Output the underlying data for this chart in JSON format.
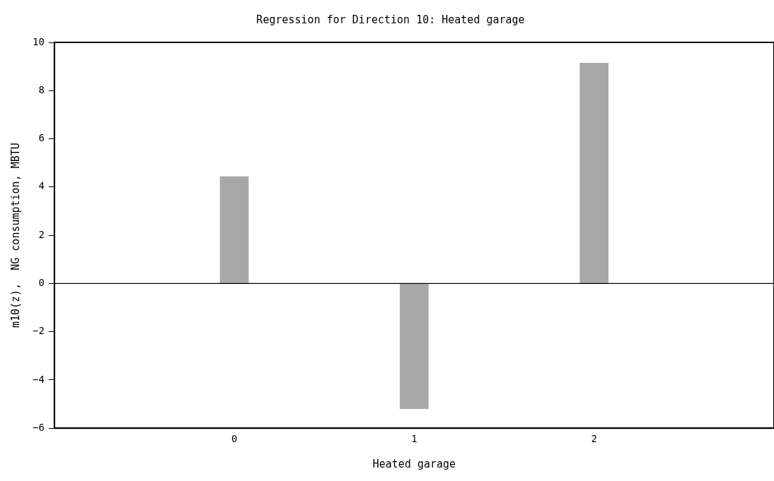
{
  "chart_data": {
    "type": "bar",
    "title": "Regression for Direction 10: Heated garage",
    "xlabel": "Heated garage",
    "ylabel": "m10(z),  NG consumption, MBTU",
    "x": [
      0,
      1,
      2
    ],
    "values": [
      4.44,
      -5.2,
      9.15
    ],
    "color": "#a8a8a8",
    "xlim": [
      -1,
      3
    ],
    "xticks": [
      0,
      1,
      2
    ],
    "ylim": [
      -6,
      10
    ],
    "yticks": [
      -6,
      -4,
      -2,
      0,
      2,
      4,
      6,
      8,
      10
    ],
    "ref_lines": [
      {
        "axis": "y",
        "value": 0,
        "color": "#000000"
      }
    ],
    "grid": false,
    "legend": false
  }
}
